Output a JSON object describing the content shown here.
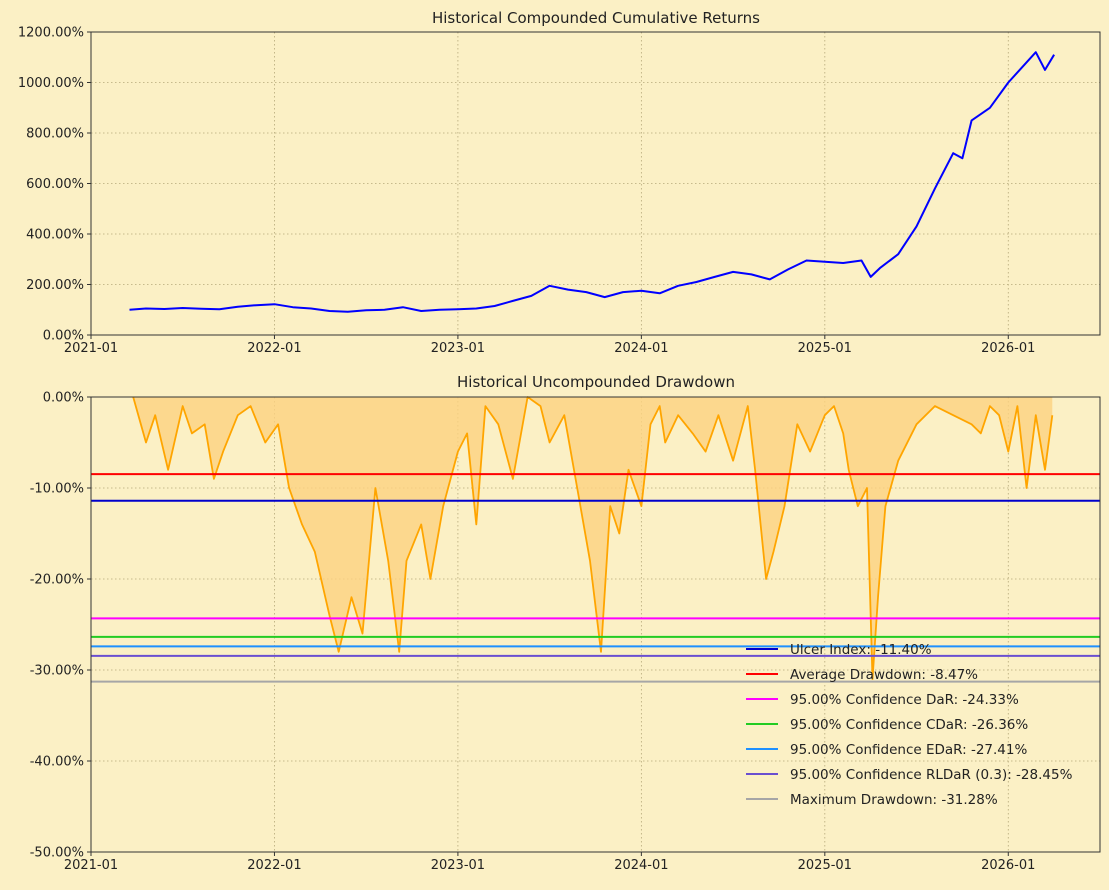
{
  "chart_data": [
    {
      "type": "line",
      "title": "Historical Compounded Cumulative Returns",
      "xlabel": "",
      "ylabel": "",
      "x_ticks": [
        "2021-01",
        "2022-01",
        "2023-01",
        "2024-01",
        "2025-01",
        "2026-01"
      ],
      "y_ticks": [
        "0.00%",
        "200.00%",
        "400.00%",
        "600.00%",
        "800.00%",
        "1000.00%",
        "1200.00%"
      ],
      "xlim": [
        2021.0,
        2026.5
      ],
      "ylim": [
        0,
        1200
      ],
      "grid": true,
      "series": [
        {
          "name": "Cumulative Returns",
          "color": "#0000ff",
          "x": [
            2021.21,
            2021.3,
            2021.4,
            2021.5,
            2021.6,
            2021.7,
            2021.8,
            2021.9,
            2022.0,
            2022.1,
            2022.2,
            2022.3,
            2022.4,
            2022.5,
            2022.6,
            2022.7,
            2022.8,
            2022.9,
            2023.0,
            2023.1,
            2023.2,
            2023.3,
            2023.4,
            2023.5,
            2023.6,
            2023.7,
            2023.8,
            2023.9,
            2024.0,
            2024.1,
            2024.2,
            2024.3,
            2024.4,
            2024.5,
            2024.6,
            2024.7,
            2024.8,
            2024.9,
            2025.0,
            2025.1,
            2025.2,
            2025.25,
            2025.3,
            2025.4,
            2025.5,
            2025.6,
            2025.7,
            2025.75,
            2025.8,
            2025.9,
            2026.0,
            2026.1,
            2026.15,
            2026.2,
            2026.25
          ],
          "values": [
            100,
            105,
            103,
            107,
            104,
            102,
            112,
            118,
            122,
            110,
            105,
            95,
            92,
            98,
            100,
            110,
            95,
            100,
            102,
            105,
            115,
            135,
            155,
            195,
            180,
            170,
            150,
            170,
            175,
            165,
            195,
            210,
            230,
            250,
            240,
            220,
            260,
            295,
            290,
            285,
            295,
            230,
            265,
            320,
            430,
            580,
            720,
            700,
            850,
            900,
            1000,
            1080,
            1120,
            1050,
            1110
          ]
        }
      ]
    },
    {
      "type": "area",
      "title": "Historical Uncompounded Drawdown",
      "xlabel": "",
      "ylabel": "",
      "x_ticks": [
        "2021-01",
        "2022-01",
        "2023-01",
        "2024-01",
        "2025-01",
        "2026-01"
      ],
      "y_ticks": [
        "0.00%",
        "-10.00%",
        "-20.00%",
        "-30.00%",
        "-40.00%",
        "-50.00%"
      ],
      "xlim": [
        2021.0,
        2026.5
      ],
      "ylim": [
        -50,
        0
      ],
      "grid": true,
      "series": [
        {
          "name": "Drawdown",
          "color": "#ffa500",
          "x": [
            2021.23,
            2021.3,
            2021.35,
            2021.42,
            2021.5,
            2021.55,
            2021.62,
            2021.67,
            2021.72,
            2021.8,
            2021.87,
            2021.95,
            2022.02,
            2022.08,
            2022.15,
            2022.22,
            2022.3,
            2022.35,
            2022.42,
            2022.48,
            2022.55,
            2022.62,
            2022.68,
            2022.72,
            2022.8,
            2022.85,
            2022.92,
            2023.0,
            2023.05,
            2023.1,
            2023.15,
            2023.22,
            2023.3,
            2023.38,
            2023.45,
            2023.5,
            2023.58,
            2023.65,
            2023.72,
            2023.78,
            2023.83,
            2023.88,
            2023.93,
            2024.0,
            2024.05,
            2024.1,
            2024.13,
            2024.2,
            2024.28,
            2024.35,
            2024.42,
            2024.5,
            2024.58,
            2024.62,
            2024.68,
            2024.72,
            2024.78,
            2024.85,
            2024.92,
            2025.0,
            2025.05,
            2025.1,
            2025.13,
            2025.18,
            2025.23,
            2025.26,
            2025.29,
            2025.33,
            2025.4,
            2025.5,
            2025.6,
            2025.7,
            2025.8,
            2025.85,
            2025.9,
            2025.95,
            2026.0,
            2026.05,
            2026.1,
            2026.15,
            2026.2,
            2026.24
          ],
          "values": [
            0,
            -5,
            -2,
            -8,
            -1,
            -4,
            -3,
            -9,
            -6,
            -2,
            -1,
            -5,
            -3,
            -10,
            -14,
            -17,
            -24,
            -28,
            -22,
            -26,
            -10,
            -18,
            -28,
            -18,
            -14,
            -20,
            -12,
            -6,
            -4,
            -14,
            -1,
            -3,
            -9,
            0,
            -1,
            -5,
            -2,
            -10,
            -18,
            -28,
            -12,
            -15,
            -8,
            -12,
            -3,
            -1,
            -5,
            -2,
            -4,
            -6,
            -2,
            -7,
            -1,
            -8,
            -20,
            -17,
            -12,
            -3,
            -6,
            -2,
            -1,
            -4,
            -8,
            -12,
            -10,
            -31,
            -22,
            -12,
            -7,
            -3,
            -1,
            -2,
            -3,
            -4,
            -1,
            -2,
            -6,
            -1,
            -10,
            -2,
            -8,
            -2
          ]
        }
      ],
      "reference_lines": [
        {
          "label": "Ulcer Index: -11.40%",
          "value": -11.4,
          "color": "#0000cc"
        },
        {
          "label": "Average Drawdown: -8.47%",
          "value": -8.47,
          "color": "#ff0000"
        },
        {
          "label": "95.00% Confidence DaR: -24.33%",
          "value": -24.33,
          "color": "#ff00ff"
        },
        {
          "label": "95.00% Confidence CDaR: -26.36%",
          "value": -26.36,
          "color": "#22cc22"
        },
        {
          "label": "95.00% Confidence EDaR: -27.41%",
          "value": -27.41,
          "color": "#1e90ff"
        },
        {
          "label": "95.00% Confidence RLDaR (0.3): -28.45%",
          "value": -28.45,
          "color": "#6a4fd0"
        },
        {
          "label": "Maximum Drawdown: -31.28%",
          "value": -31.28,
          "color": "#a6a6a6"
        }
      ],
      "legend_position": "lower-right"
    }
  ],
  "colors": {
    "background": "#fbf0c5",
    "grid": "#b5a87a",
    "axis": "#333333"
  }
}
